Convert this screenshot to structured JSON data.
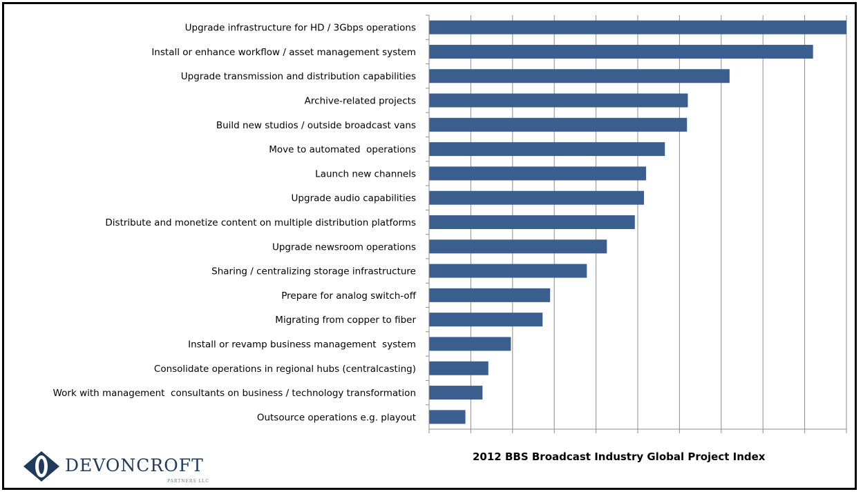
{
  "chart_data": {
    "type": "bar",
    "orientation": "horizontal",
    "categories": [
      "Upgrade infrastructure for HD / 3Gbps operations",
      "Install or enhance workflow / asset management system",
      "Upgrade transmission and distribution capabilities",
      "Archive-related projects",
      "Build new studios / outside broadcast vans",
      "Move to automated  operations",
      "Launch new channels",
      "Upgrade audio capabilities",
      "Distribute and monetize content on multiple distribution platforms",
      "Upgrade newsroom operations",
      "Sharing / centralizing storage infrastructure",
      "Prepare for analog switch-off",
      "Migrating from copper to fiber",
      "Install or revamp business management  system",
      "Consolidate operations in regional hubs (centralcasting)",
      "Work with management  consultants on business / technology transformation",
      "Outsource operations e.g. playout"
    ],
    "values": [
      100,
      92,
      72,
      62,
      61.8,
      56.5,
      52,
      51.5,
      49.3,
      42.6,
      37.8,
      29,
      27.2,
      19.6,
      14.2,
      12.8,
      8.7
    ],
    "xlim": [
      0,
      100
    ],
    "x_ticks": 10,
    "grid": true,
    "bar_color": "#3a5f8f",
    "grid_color": "#8c8c8c",
    "caption": "2012 BBS Broadcast Industry Global Project Index"
  },
  "logo": {
    "name": "DEVONCROFT",
    "sub": "PARTNERS LLC"
  }
}
